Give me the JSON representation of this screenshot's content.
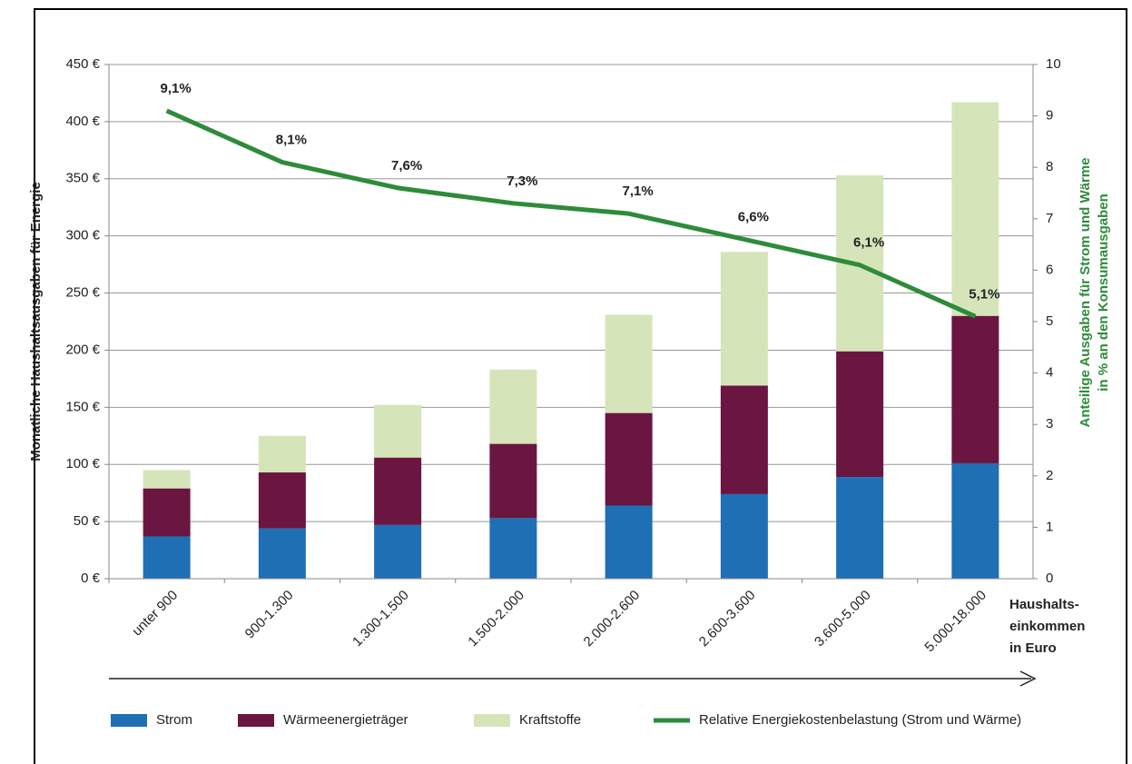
{
  "chart_data": {
    "type": "bar",
    "y_label": "Monatliche Haushaltsausgaben für Energie",
    "y2_label": [
      "Anteilige Ausgaben für Strom und Wärme",
      "in % an den Konsumausgaben"
    ],
    "x_label": [
      "Haushalts-",
      "einkommen",
      "in Euro"
    ],
    "categories": [
      "unter 900",
      "900-1.300",
      "1.300-1.500",
      "1.500-2.000",
      "2.000-2.600",
      "2.600-3.600",
      "3.600-5.000",
      "5.000-18.000"
    ],
    "series": [
      {
        "name": "Strom",
        "color": "#1f6fb5",
        "values": [
          37,
          44,
          47,
          53,
          64,
          74,
          89,
          101
        ]
      },
      {
        "name": "Wärmeenergieträger",
        "color": "#6b1541",
        "values": [
          42,
          49,
          59,
          65,
          81,
          95,
          110,
          129
        ]
      },
      {
        "name": "Kraftstoffe",
        "color": "#d6e5b9",
        "values": [
          16,
          32,
          46,
          65,
          86,
          117,
          154,
          187
        ]
      },
      {
        "name": "Relative Energiekostenbelastung (Strom und Wärme)",
        "color": "#2e8b3a",
        "type": "line",
        "axis": "y2",
        "values": [
          9.1,
          8.1,
          7.6,
          7.3,
          7.1,
          6.6,
          6.1,
          5.1
        ],
        "value_labels": [
          "9,1%",
          "8,1%",
          "7,6%",
          "7,3%",
          "7,1%",
          "6,6%",
          "6,1%",
          "5,1%"
        ]
      }
    ],
    "ylim": [
      0,
      450
    ],
    "yticks": [
      {
        "value": 0,
        "label": "0 €"
      },
      {
        "value": 50,
        "label": "50 €"
      },
      {
        "value": 100,
        "label": "100 €"
      },
      {
        "value": 150,
        "label": "150 €"
      },
      {
        "value": 200,
        "label": "200 €"
      },
      {
        "value": 250,
        "label": "250 €"
      },
      {
        "value": 300,
        "label": "300 €"
      },
      {
        "value": 350,
        "label": "350 €"
      },
      {
        "value": 400,
        "label": "400 €"
      },
      {
        "value": 450,
        "label": "450 €"
      }
    ],
    "y2lim": [
      0,
      10
    ],
    "y2ticks": [
      0,
      1,
      2,
      3,
      4,
      5,
      6,
      7,
      8,
      9,
      10
    ],
    "grid": true,
    "legend": "bottom"
  }
}
